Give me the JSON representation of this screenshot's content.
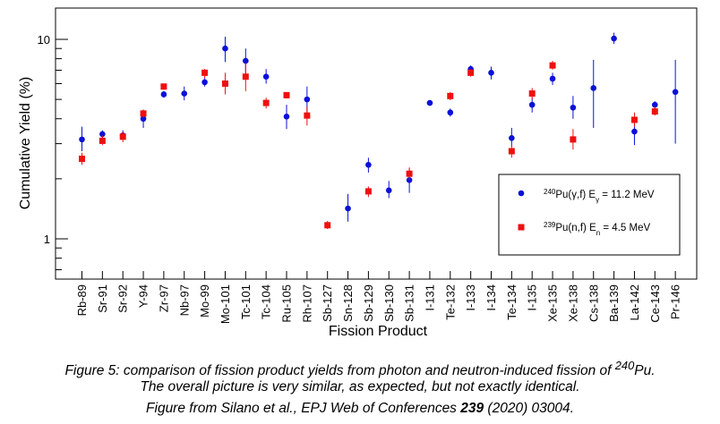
{
  "chart_data": {
    "type": "scatter",
    "ylabel": "Cumulative Yield (%)",
    "xlabel": "Fission Product",
    "yscale": "log",
    "ylim": [
      0.6,
      16
    ],
    "y_tick_labels": [
      {
        "value": 1,
        "label": "1"
      },
      {
        "value": 10,
        "label": "10"
      }
    ],
    "grid": false,
    "legend_position": "right",
    "categories": [
      "Rb-89",
      "Sr-91",
      "Sr-92",
      "Y-94",
      "Zr-97",
      "Nb-97",
      "Mo-99",
      "Mo-101",
      "Tc-101",
      "Tc-104",
      "Ru-105",
      "Rh-107",
      "Sb-127",
      "Sn-128",
      "Sb-129",
      "Sb-130",
      "Sb-131",
      "I-131",
      "Te-132",
      "I-133",
      "I-134",
      "Te-134",
      "I-135",
      "Xe-135",
      "Xe-138",
      "Cs-138",
      "Ba-139",
      "La-142",
      "Ce-143",
      "Pr-146"
    ],
    "series": [
      {
        "name_html": "<tspan baseline-shift=\"super\" font-size=\"8\">240</tspan>Pu(γ,f) E<tspan baseline-shift=\"sub\" font-size=\"8\">γ</tspan> = 11.2 MeV",
        "color": "#0a10d8",
        "marker": "circle",
        "points": [
          {
            "x": "Rb-89",
            "y": 3.15,
            "lo": 2.75,
            "hi": 3.65
          },
          {
            "x": "Sr-91",
            "y": 3.35,
            "lo": 3.2,
            "hi": 3.5
          },
          {
            "x": "Sr-92",
            "y": 3.3,
            "lo": 3.15,
            "hi": 3.5
          },
          {
            "x": "Y-94",
            "y": 4.0,
            "lo": 3.6,
            "hi": 4.3
          },
          {
            "x": "Zr-97",
            "y": 5.3,
            "lo": 5.1,
            "hi": 5.5
          },
          {
            "x": "Nb-97",
            "y": 5.35,
            "lo": 4.95,
            "hi": 5.8
          },
          {
            "x": "Mo-99",
            "y": 6.1,
            "lo": 5.8,
            "hi": 6.4
          },
          {
            "x": "Mo-101",
            "y": 9.0,
            "lo": 7.7,
            "hi": 10.3
          },
          {
            "x": "Tc-101",
            "y": 7.8,
            "lo": 6.7,
            "hi": 9.0
          },
          {
            "x": "Tc-104",
            "y": 6.5,
            "lo": 6.0,
            "hi": 7.1
          },
          {
            "x": "Ru-105",
            "y": 4.1,
            "lo": 3.55,
            "hi": 4.7
          },
          {
            "x": "Rh-107",
            "y": 5.0,
            "lo": 4.3,
            "hi": 5.8
          },
          {
            "x": "Sn-128",
            "y": 1.42,
            "lo": 1.22,
            "hi": 1.68
          },
          {
            "x": "Sb-129",
            "y": 2.35,
            "lo": 2.15,
            "hi": 2.55
          },
          {
            "x": "Sb-130",
            "y": 1.75,
            "lo": 1.6,
            "hi": 1.95
          },
          {
            "x": "Sb-131",
            "y": 1.97,
            "lo": 1.7,
            "hi": 2.25
          },
          {
            "x": "I-131",
            "y": 4.8
          },
          {
            "x": "Te-132",
            "y": 4.3,
            "lo": 4.1,
            "hi": 4.5
          },
          {
            "x": "I-133",
            "y": 7.1,
            "lo": 6.8,
            "hi": 7.4
          },
          {
            "x": "I-134",
            "y": 6.8,
            "lo": 6.3,
            "hi": 7.3
          },
          {
            "x": "Te-134",
            "y": 3.2,
            "lo": 2.9,
            "hi": 3.6
          },
          {
            "x": "I-135",
            "y": 4.7,
            "lo": 4.3,
            "hi": 5.1
          },
          {
            "x": "Xe-135",
            "y": 6.35,
            "lo": 5.9,
            "hi": 6.8
          },
          {
            "x": "Xe-138",
            "y": 4.55,
            "lo": 4.0,
            "hi": 5.2
          },
          {
            "x": "Cs-138",
            "y": 5.7,
            "lo": 3.6,
            "hi": 7.9
          },
          {
            "x": "Ba-139",
            "y": 10.1,
            "lo": 9.5,
            "hi": 10.8
          },
          {
            "x": "La-142",
            "y": 3.45,
            "lo": 2.95,
            "hi": 3.9
          },
          {
            "x": "Ce-143",
            "y": 4.7,
            "lo": 4.5,
            "hi": 4.9
          },
          {
            "x": "Pr-146",
            "y": 5.45,
            "lo": 3.0,
            "hi": 7.9
          }
        ]
      },
      {
        "name_html": "<tspan baseline-shift=\"super\" font-size=\"8\">239</tspan>Pu(n,f) E<tspan baseline-shift=\"sub\" font-size=\"8\">n</tspan> = 4.5 MeV",
        "color": "#ee1010",
        "marker": "square",
        "points": [
          {
            "x": "Rb-89",
            "y": 2.52,
            "lo": 2.35,
            "hi": 2.7
          },
          {
            "x": "Sr-91",
            "y": 3.1,
            "lo": 2.95,
            "hi": 3.3
          },
          {
            "x": "Sr-92",
            "y": 3.25,
            "lo": 3.05,
            "hi": 3.45
          },
          {
            "x": "Y-94",
            "y": 4.25,
            "lo": 4.05,
            "hi": 4.45
          },
          {
            "x": "Zr-97",
            "y": 5.8,
            "lo": 5.6,
            "hi": 6.0
          },
          {
            "x": "Mo-99",
            "y": 6.8,
            "lo": 6.4,
            "hi": 7.1
          },
          {
            "x": "Mo-101",
            "y": 6.0,
            "lo": 5.3,
            "hi": 6.8
          },
          {
            "x": "Tc-101",
            "y": 6.5,
            "lo": 5.5,
            "hi": 7.6
          },
          {
            "x": "Tc-104",
            "y": 4.8,
            "lo": 4.5,
            "hi": 5.1
          },
          {
            "x": "Ru-105",
            "y": 5.25,
            "lo": 5.05,
            "hi": 5.45
          },
          {
            "x": "Rh-107",
            "y": 4.15,
            "lo": 3.7,
            "hi": 4.6
          },
          {
            "x": "Sb-127",
            "y": 1.17,
            "lo": 1.12,
            "hi": 1.23
          },
          {
            "x": "Sb-129",
            "y": 1.73,
            "lo": 1.62,
            "hi": 1.83
          },
          {
            "x": "Sb-131",
            "y": 2.12,
            "lo": 1.98,
            "hi": 2.28
          },
          {
            "x": "Te-132",
            "y": 5.2,
            "lo": 4.95,
            "hi": 5.45
          },
          {
            "x": "I-133",
            "y": 6.8,
            "lo": 6.5,
            "hi": 7.1
          },
          {
            "x": "Te-134",
            "y": 2.75,
            "lo": 2.55,
            "hi": 2.95
          },
          {
            "x": "I-135",
            "y": 5.35,
            "lo": 5.0,
            "hi": 5.7
          },
          {
            "x": "Xe-135",
            "y": 7.4,
            "lo": 7.05,
            "hi": 7.8
          },
          {
            "x": "Xe-138",
            "y": 3.15,
            "lo": 2.8,
            "hi": 3.55
          },
          {
            "x": "La-142",
            "y": 3.95,
            "lo": 3.65,
            "hi": 4.3
          },
          {
            "x": "Ce-143",
            "y": 4.35,
            "lo": 4.15,
            "hi": 4.6
          }
        ]
      }
    ]
  },
  "caption": {
    "line1_html": "Figure 5: comparison of fission product yields from photon and neutron-induced fission of <sup>240</sup>Pu.",
    "line2": "The overall picture is very similar, as expected, but not exactly identical.",
    "line3_html": "Figure from Silano et al., EPJ Web of Conferences <b>239</b> (2020) 03004."
  }
}
